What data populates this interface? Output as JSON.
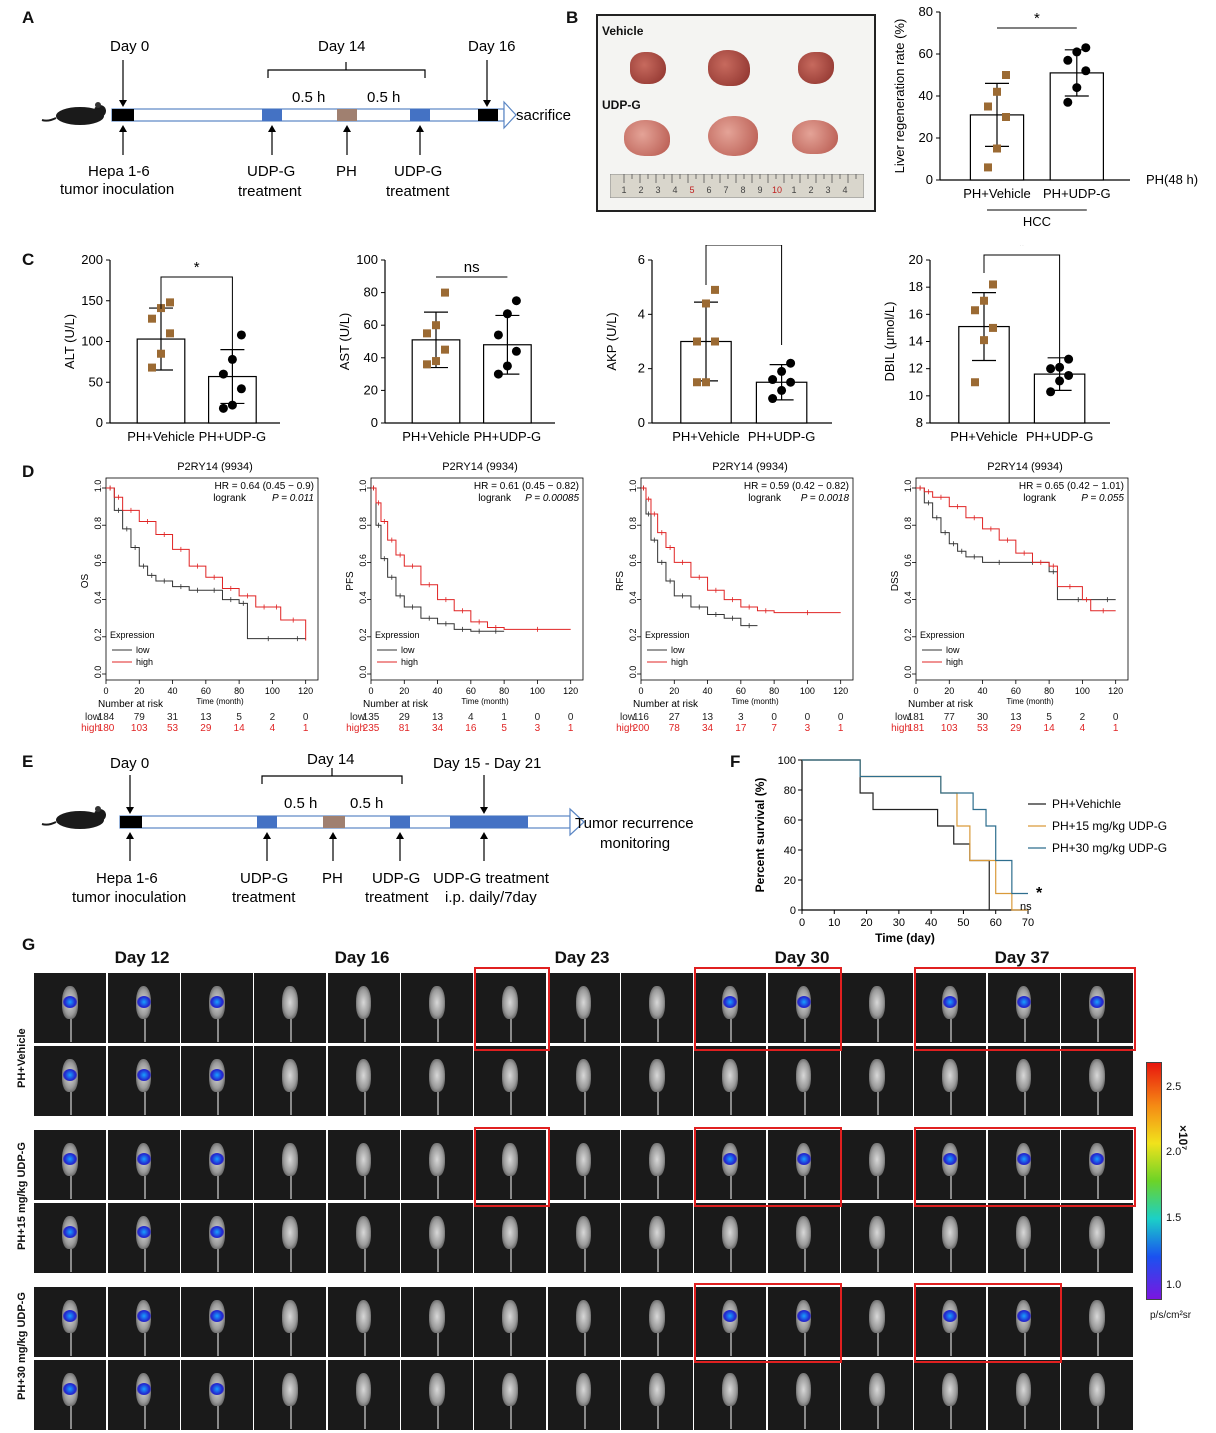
{
  "panels": {
    "A": {
      "letter": "A",
      "day0": "Day 0",
      "day14": "Day 14",
      "day16": "Day 16",
      "interval1": "0.5 h",
      "interval2": "0.5 h",
      "end_label": "sacrifice",
      "labels": [
        "Hepa 1-6",
        "tumor inoculation",
        "UDP-G",
        "treatment",
        "PH",
        "UDP-G",
        "treatment"
      ]
    },
    "B": {
      "letter": "B",
      "photo_vehicle": "Vehicle",
      "photo_udpg": "UDP-G",
      "ruler_numbers": [
        "1",
        "2",
        "3",
        "4",
        "5",
        "6",
        "7",
        "8",
        "9",
        "10",
        "1",
        "2",
        "3",
        "4"
      ]
    },
    "C": {
      "letter": "C"
    },
    "D": {
      "letter": "D"
    },
    "E": {
      "letter": "E",
      "day0": "Day 0",
      "day14": "Day 14",
      "day15_21": "Day 15 - Day 21",
      "interval1": "0.5 h",
      "interval2": "0.5 h",
      "end_label_1": "Tumor recurrence",
      "end_label_2": "monitoring",
      "labels": [
        "Hepa 1-6",
        "tumor inoculation",
        "UDP-G",
        "treatment",
        "PH",
        "UDP-G",
        "treatment",
        "UDP-G treatment",
        "i.p. daily/7day"
      ]
    },
    "F": {
      "letter": "F"
    },
    "G": {
      "letter": "G",
      "days": [
        "Day 12",
        "Day 16",
        "Day 23",
        "Day 30",
        "Day 37"
      ],
      "groups": [
        "PH+Vehicle",
        "PH+15 mg/kg UDP-G",
        "PH+30 mg/kg UDP-G"
      ],
      "colorbar": {
        "ticks": [
          "2.5",
          "2.0",
          "1.5",
          "1.0"
        ],
        "exponent": "×10⁷",
        "unit": "p/s/cm²sr"
      }
    }
  },
  "chart_data": [
    {
      "id": "B-liver-regeneration",
      "type": "bar",
      "categories": [
        "PH+Vehicle",
        "PH+UDP-G"
      ],
      "values": [
        31,
        51
      ],
      "error": [
        15,
        11
      ],
      "points": [
        [
          6,
          15,
          30,
          35,
          42,
          50
        ],
        [
          37,
          44,
          52,
          57,
          61,
          63
        ]
      ],
      "ylabel": "Liver regeneration rate (%)",
      "ylim": [
        0,
        80
      ],
      "yticks": [
        "0",
        "20",
        "40",
        "60",
        "80"
      ],
      "group_label": "HCC",
      "side_label": "PH(48 h)",
      "significance": "*",
      "point_colors": [
        "#9b6a33",
        "#000000"
      ]
    },
    {
      "id": "C-ALT",
      "type": "bar",
      "categories": [
        "PH+Vehicle",
        "PH+UDP-G"
      ],
      "values": [
        103,
        57
      ],
      "error": [
        38,
        33
      ],
      "points": [
        [
          68,
          85,
          110,
          128,
          141,
          148
        ],
        [
          18,
          22,
          42,
          60,
          78,
          108
        ]
      ],
      "ylabel": "ALT (U/L)",
      "ylim": [
        0,
        200
      ],
      "yticks": [
        "0",
        "50",
        "100",
        "150",
        "200"
      ],
      "significance": "*"
    },
    {
      "id": "C-AST",
      "type": "bar",
      "categories": [
        "PH+Vehicle",
        "PH+UDP-G"
      ],
      "values": [
        51,
        48
      ],
      "error": [
        17,
        18
      ],
      "points": [
        [
          36,
          38,
          45,
          55,
          60,
          80
        ],
        [
          30,
          35,
          44,
          54,
          67,
          75
        ]
      ],
      "ylabel": "AST (U/L)",
      "ylim": [
        0,
        100
      ],
      "yticks": [
        "0",
        "20",
        "40",
        "60",
        "80",
        "100"
      ],
      "significance": "ns"
    },
    {
      "id": "C-AKP",
      "type": "bar",
      "categories": [
        "PH+Vehicle",
        "PH+UDP-G"
      ],
      "values": [
        3.0,
        1.5
      ],
      "error": [
        1.45,
        0.65
      ],
      "points": [
        [
          1.5,
          1.5,
          3.0,
          3.0,
          4.4,
          4.9
        ],
        [
          0.9,
          1.2,
          1.5,
          1.6,
          1.9,
          2.2
        ]
      ],
      "ylabel": "AKP (U/L)",
      "ylim": [
        0,
        6
      ],
      "yticks": [
        "0",
        "2",
        "4",
        "6"
      ],
      "significance": "*"
    },
    {
      "id": "C-DBIL",
      "type": "bar",
      "categories": [
        "PH+Vehicle",
        "PH+UDP-G"
      ],
      "values": [
        15.1,
        11.6
      ],
      "error": [
        2.5,
        1.2
      ],
      "points": [
        [
          11.0,
          14.1,
          15.0,
          16.3,
          17.0,
          18.2
        ],
        [
          10.3,
          11.1,
          11.5,
          12.0,
          12.1,
          12.7
        ]
      ],
      "ylabel": "DBIL (μmol/L)",
      "ylim": [
        8,
        20
      ],
      "yticks": [
        "8",
        "10",
        "12",
        "14",
        "16",
        "18",
        "20"
      ],
      "significance": "*"
    },
    {
      "id": "D-OS",
      "type": "line",
      "title": "P2RY14 (9934)",
      "ylabel": "OS",
      "xlabel": "Time (month)",
      "xlim": [
        0,
        125
      ],
      "ylim": [
        0,
        1
      ],
      "xticks": [
        "0",
        "20",
        "40",
        "60",
        "80",
        "100",
        "120"
      ],
      "yticks": [
        "0.0",
        "0.2",
        "0.4",
        "0.6",
        "0.8",
        "1.0"
      ],
      "hr": "HR = 0.64 (0.45 − 0.9)",
      "logrank_label": "logrank",
      "logrank_p": "P = 0.011",
      "legend_title": "Expression",
      "series": [
        {
          "name": "low",
          "color": "#333333",
          "x": [
            0,
            5,
            10,
            15,
            20,
            25,
            30,
            40,
            50,
            60,
            70,
            80,
            85,
            110,
            120
          ],
          "y": [
            1.0,
            0.88,
            0.78,
            0.68,
            0.58,
            0.53,
            0.5,
            0.47,
            0.45,
            0.45,
            0.4,
            0.38,
            0.19,
            0.19,
            0.19
          ]
        },
        {
          "name": "high",
          "color": "#e02424",
          "x": [
            0,
            5,
            10,
            20,
            30,
            40,
            50,
            60,
            70,
            80,
            90,
            100,
            105,
            120
          ],
          "y": [
            1.0,
            0.95,
            0.88,
            0.82,
            0.75,
            0.67,
            0.58,
            0.52,
            0.46,
            0.42,
            0.36,
            0.36,
            0.29,
            0.18
          ]
        }
      ],
      "risk_header": "Number at risk",
      "risk_times": [
        "0",
        "20",
        "40",
        "60",
        "80",
        "100",
        "120"
      ],
      "risk": [
        {
          "name": "low",
          "values": [
            "184",
            "79",
            "31",
            "13",
            "5",
            "2",
            "0"
          ]
        },
        {
          "name": "high",
          "values": [
            "180",
            "103",
            "53",
            "29",
            "14",
            "4",
            "1"
          ]
        }
      ]
    },
    {
      "id": "D-PFS",
      "type": "line",
      "title": "P2RY14 (9934)",
      "ylabel": "PFS",
      "xlabel": "Time (month)",
      "xlim": [
        0,
        125
      ],
      "ylim": [
        0,
        1
      ],
      "xticks": [
        "0",
        "20",
        "40",
        "60",
        "80",
        "100",
        "120"
      ],
      "yticks": [
        "0.0",
        "0.2",
        "0.4",
        "0.6",
        "0.8",
        "1.0"
      ],
      "hr": "HR = 0.61 (0.45 − 0.82)",
      "logrank_label": "logrank",
      "logrank_p": "P = 0.00085",
      "legend_title": "Expression",
      "series": [
        {
          "name": "low",
          "color": "#333333",
          "x": [
            0,
            3,
            6,
            10,
            15,
            20,
            30,
            40,
            50,
            60,
            70,
            80
          ],
          "y": [
            1.0,
            0.8,
            0.62,
            0.52,
            0.42,
            0.36,
            0.3,
            0.27,
            0.24,
            0.23,
            0.23,
            0.23
          ]
        },
        {
          "name": "high",
          "color": "#e02424",
          "x": [
            0,
            3,
            6,
            10,
            15,
            20,
            30,
            40,
            50,
            60,
            70,
            80,
            120
          ],
          "y": [
            1.0,
            0.92,
            0.82,
            0.72,
            0.64,
            0.58,
            0.48,
            0.4,
            0.34,
            0.28,
            0.25,
            0.24,
            0.24
          ]
        }
      ],
      "risk_header": "Number at risk",
      "risk_times": [
        "0",
        "20",
        "40",
        "60",
        "80",
        "100",
        "120"
      ],
      "risk": [
        {
          "name": "low",
          "values": [
            "135",
            "29",
            "13",
            "4",
            "1",
            "0",
            "0"
          ]
        },
        {
          "name": "high",
          "values": [
            "235",
            "81",
            "34",
            "16",
            "5",
            "3",
            "1"
          ]
        }
      ]
    },
    {
      "id": "D-RFS",
      "type": "line",
      "title": "P2RY14 (9934)",
      "ylabel": "RFS",
      "xlabel": "Time (month)",
      "xlim": [
        0,
        125
      ],
      "ylim": [
        0,
        1
      ],
      "xticks": [
        "0",
        "20",
        "40",
        "60",
        "80",
        "100",
        "120"
      ],
      "yticks": [
        "0.0",
        "0.2",
        "0.4",
        "0.6",
        "0.8",
        "1.0"
      ],
      "hr": "HR = 0.59 (0.42 − 0.82)",
      "logrank_label": "logrank",
      "logrank_p": "P = 0.0018",
      "legend_title": "Expression",
      "series": [
        {
          "name": "low",
          "color": "#333333",
          "x": [
            0,
            3,
            6,
            10,
            15,
            20,
            30,
            40,
            50,
            60,
            70
          ],
          "y": [
            1.0,
            0.86,
            0.72,
            0.6,
            0.5,
            0.42,
            0.36,
            0.32,
            0.3,
            0.26,
            0.26
          ]
        },
        {
          "name": "high",
          "color": "#e02424",
          "x": [
            0,
            3,
            6,
            10,
            15,
            20,
            30,
            40,
            50,
            60,
            70,
            80,
            120
          ],
          "y": [
            1.0,
            0.94,
            0.86,
            0.76,
            0.68,
            0.6,
            0.52,
            0.45,
            0.4,
            0.36,
            0.34,
            0.33,
            0.33
          ]
        }
      ],
      "risk_header": "Number at risk",
      "risk_times": [
        "0",
        "20",
        "40",
        "60",
        "80",
        "100",
        "120"
      ],
      "risk": [
        {
          "name": "low",
          "values": [
            "116",
            "27",
            "13",
            "3",
            "0",
            "0",
            "0"
          ]
        },
        {
          "name": "high",
          "values": [
            "200",
            "78",
            "34",
            "17",
            "7",
            "3",
            "1"
          ]
        }
      ]
    },
    {
      "id": "D-DSS",
      "type": "line",
      "title": "P2RY14 (9934)",
      "ylabel": "DSS",
      "xlabel": "Time (month)",
      "xlim": [
        0,
        125
      ],
      "ylim": [
        0,
        1
      ],
      "xticks": [
        "0",
        "20",
        "40",
        "60",
        "80",
        "100",
        "120"
      ],
      "yticks": [
        "0.0",
        "0.2",
        "0.4",
        "0.6",
        "0.8",
        "1.0"
      ],
      "hr": "HR = 0.65 (0.42 − 1.01)",
      "logrank_label": "logrank",
      "logrank_p": "P = 0.055",
      "legend_title": "Expression",
      "series": [
        {
          "name": "low",
          "color": "#333333",
          "x": [
            0,
            5,
            10,
            15,
            20,
            25,
            30,
            40,
            60,
            80,
            85,
            110,
            120
          ],
          "y": [
            1.0,
            0.92,
            0.84,
            0.76,
            0.7,
            0.66,
            0.63,
            0.6,
            0.6,
            0.55,
            0.4,
            0.4,
            0.4
          ]
        },
        {
          "name": "high",
          "color": "#e02424",
          "x": [
            0,
            5,
            10,
            20,
            30,
            40,
            50,
            60,
            70,
            80,
            85,
            100,
            105,
            120
          ],
          "y": [
            1.0,
            0.98,
            0.95,
            0.9,
            0.84,
            0.78,
            0.72,
            0.65,
            0.6,
            0.58,
            0.47,
            0.4,
            0.34,
            0.34
          ]
        }
      ],
      "risk_header": "Number at risk",
      "risk_times": [
        "0",
        "20",
        "40",
        "60",
        "80",
        "100",
        "120"
      ],
      "risk": [
        {
          "name": "low",
          "values": [
            "181",
            "77",
            "30",
            "13",
            "5",
            "2",
            "0"
          ]
        },
        {
          "name": "high",
          "values": [
            "181",
            "103",
            "53",
            "29",
            "14",
            "4",
            "1"
          ]
        }
      ]
    },
    {
      "id": "F-survival",
      "type": "line",
      "ylabel": "Percent survival (%)",
      "xlabel": "Time (day)",
      "xlim": [
        0,
        70
      ],
      "ylim": [
        0,
        100
      ],
      "xticks": [
        "0",
        "10",
        "20",
        "30",
        "40",
        "50",
        "60",
        "70"
      ],
      "yticks": [
        "0",
        "20",
        "40",
        "60",
        "80",
        "100"
      ],
      "annotations": [
        "*",
        "ns"
      ],
      "series": [
        {
          "name": "PH+Vehichle",
          "color": "#222222",
          "x": [
            0,
            18,
            18,
            22,
            22,
            42,
            42,
            47,
            47,
            52,
            52,
            58,
            58,
            60
          ],
          "y": [
            100,
            100,
            78,
            78,
            67,
            67,
            56,
            56,
            44,
            44,
            33,
            33,
            0,
            0
          ]
        },
        {
          "name": "PH+15 mg/kg UDP-G",
          "color": "#d99a3a",
          "x": [
            0,
            18,
            18,
            43,
            43,
            48,
            48,
            52,
            52,
            60,
            60,
            65,
            65,
            70
          ],
          "y": [
            100,
            100,
            89,
            89,
            78,
            78,
            56,
            56,
            33,
            33,
            11,
            11,
            0,
            0
          ]
        },
        {
          "name": "PH+30 mg/kg UDP-G",
          "color": "#2e6e8e",
          "x": [
            0,
            18,
            18,
            43,
            43,
            53,
            53,
            57,
            57,
            60,
            60,
            65,
            65,
            70
          ],
          "y": [
            100,
            100,
            89,
            89,
            78,
            78,
            67,
            67,
            56,
            56,
            33,
            33,
            11,
            11
          ]
        }
      ]
    }
  ]
}
